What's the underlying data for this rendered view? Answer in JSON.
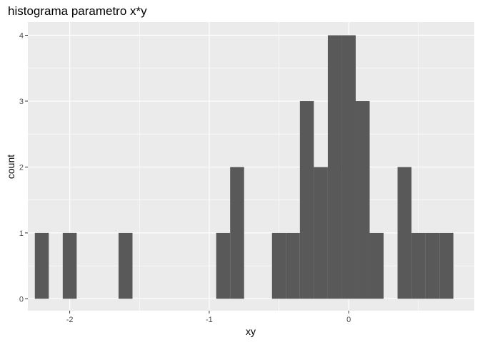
{
  "chart_data": {
    "type": "bar",
    "subtype": "histogram",
    "title": "histograma parametro x*y",
    "xlabel": "xy",
    "ylabel": "count",
    "xlim": [
      -2.3,
      0.9
    ],
    "ylim": [
      -0.18,
      4.2
    ],
    "bin_width": 0.1,
    "x_ticks": [
      -2,
      -1,
      0
    ],
    "y_ticks": [
      0,
      1,
      2,
      3,
      4
    ],
    "grid": true,
    "legend": "none",
    "bins": [
      {
        "x0": -2.25,
        "x1": -2.15,
        "count": 1
      },
      {
        "x0": -2.05,
        "x1": -1.95,
        "count": 1
      },
      {
        "x0": -1.65,
        "x1": -1.55,
        "count": 1
      },
      {
        "x0": -0.95,
        "x1": -0.85,
        "count": 1
      },
      {
        "x0": -0.85,
        "x1": -0.75,
        "count": 2
      },
      {
        "x0": -0.55,
        "x1": -0.45,
        "count": 1
      },
      {
        "x0": -0.45,
        "x1": -0.35,
        "count": 1
      },
      {
        "x0": -0.35,
        "x1": -0.25,
        "count": 3
      },
      {
        "x0": -0.25,
        "x1": -0.15,
        "count": 2
      },
      {
        "x0": -0.15,
        "x1": -0.05,
        "count": 4
      },
      {
        "x0": -0.05,
        "x1": 0.05,
        "count": 4
      },
      {
        "x0": 0.05,
        "x1": 0.15,
        "count": 3
      },
      {
        "x0": 0.15,
        "x1": 0.25,
        "count": 1
      },
      {
        "x0": 0.35,
        "x1": 0.45,
        "count": 2
      },
      {
        "x0": 0.45,
        "x1": 0.55,
        "count": 1
      },
      {
        "x0": 0.55,
        "x1": 0.65,
        "count": 1
      },
      {
        "x0": 0.65,
        "x1": 0.75,
        "count": 1
      }
    ],
    "colors": {
      "panel": "#ebebeb",
      "grid": "#ffffff",
      "bar": "#595959",
      "tick_text": "#4d4d4d",
      "tick_mark": "#333333"
    }
  }
}
